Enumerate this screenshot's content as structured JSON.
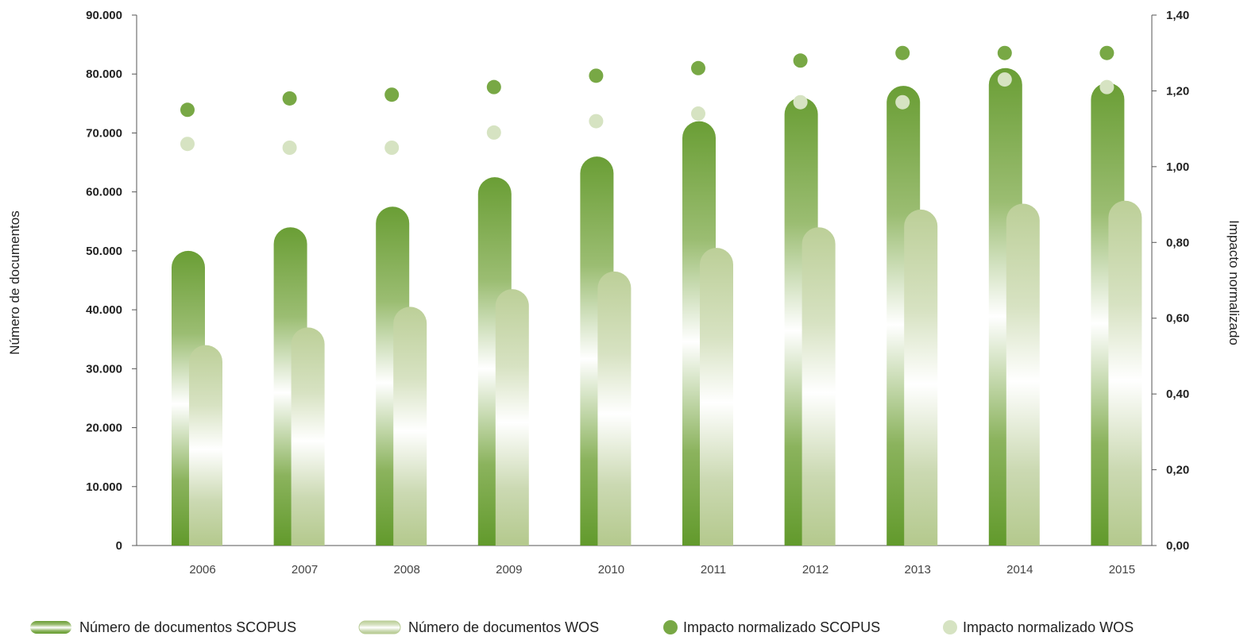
{
  "chart_data": {
    "type": "bar",
    "categories": [
      "2006",
      "2007",
      "2008",
      "2009",
      "2010",
      "2011",
      "2012",
      "2013",
      "2014",
      "2015"
    ],
    "series": [
      {
        "name": "Número de documentos SCOPUS",
        "kind": "bar",
        "axis": "left",
        "color": "#6a9e35",
        "values": [
          50000,
          54000,
          57500,
          62500,
          66000,
          72000,
          76000,
          78000,
          81000,
          78500
        ]
      },
      {
        "name": "Número de documentos WOS",
        "kind": "bar",
        "axis": "left",
        "color": "#b9cc96",
        "values": [
          34000,
          37000,
          40500,
          43500,
          46500,
          50500,
          54000,
          57000,
          58000,
          58500
        ]
      },
      {
        "name": "Impacto normalizado SCOPUS",
        "kind": "point",
        "axis": "right",
        "color": "#78a845",
        "values": [
          1.15,
          1.18,
          1.19,
          1.21,
          1.24,
          1.26,
          1.28,
          1.3,
          1.3,
          1.3
        ]
      },
      {
        "name": "Impacto normalizado WOS",
        "kind": "point",
        "axis": "right",
        "color": "#d6e3c2",
        "values": [
          1.06,
          1.05,
          1.05,
          1.09,
          1.12,
          1.14,
          1.17,
          1.17,
          1.23,
          1.21
        ]
      }
    ],
    "ylabel": "Número de documentos",
    "ylim": [
      0,
      90000
    ],
    "yticks": [
      "0",
      "10.000",
      "20.000",
      "30.000",
      "40.000",
      "50.000",
      "60.000",
      "70.000",
      "80.000",
      "90.000"
    ],
    "y2label": "Impacto normalizado",
    "y2lim": [
      0,
      1.4
    ],
    "y2ticks": [
      "0,00",
      "0,20",
      "0,40",
      "0,60",
      "0,80",
      "1,00",
      "1,20",
      "1,40"
    ],
    "legend_position": "bottom",
    "grid": false
  }
}
